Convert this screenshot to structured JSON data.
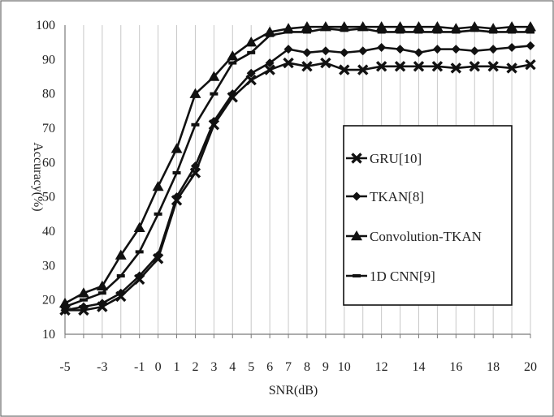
{
  "chart_data": {
    "type": "line",
    "title": "",
    "xlabel": "SNR(dB)",
    "ylabel": "Accuracy(%)",
    "ylim": [
      10,
      100
    ],
    "yticks": [
      10,
      20,
      30,
      40,
      50,
      60,
      70,
      80,
      90,
      100
    ],
    "xticks": [
      -5,
      -3,
      -1,
      0,
      1,
      2,
      3,
      4,
      5,
      6,
      7,
      8,
      9,
      10,
      12,
      14,
      16,
      18,
      20
    ],
    "x": [
      -5,
      -4,
      -3,
      -2,
      -1,
      0,
      1,
      2,
      3,
      4,
      5,
      6,
      7,
      8,
      9,
      10,
      11,
      12,
      13,
      14,
      15,
      16,
      17,
      18,
      19,
      20
    ],
    "grid": "vertical",
    "legend_position": "right",
    "series": [
      {
        "name": "GRU[10]",
        "marker": "cross",
        "values": [
          17,
          17,
          18,
          21,
          26,
          32,
          49,
          57,
          71,
          79,
          84,
          87,
          89,
          88,
          89,
          87,
          87,
          88,
          88,
          88,
          88,
          87.5,
          88,
          88,
          87.5,
          88.5
        ]
      },
      {
        "name": "TKAN[8]",
        "marker": "diamond",
        "values": [
          17,
          18,
          19,
          22,
          27,
          33,
          50,
          59,
          72,
          80,
          86,
          89,
          93,
          92,
          92.5,
          92,
          92.5,
          93.5,
          93,
          92,
          93,
          93,
          92.5,
          93,
          93.5,
          94
        ]
      },
      {
        "name": "Convolution-TKAN",
        "marker": "triangle",
        "values": [
          19,
          22,
          24,
          33,
          41,
          53,
          64,
          80,
          85,
          91,
          95,
          98,
          99,
          99.5,
          99.5,
          99.5,
          99.5,
          99.5,
          99.5,
          99.5,
          99.5,
          99,
          99.5,
          99,
          99.5,
          99.5
        ]
      },
      {
        "name": "1D CNN[9]",
        "marker": "dash",
        "values": [
          18,
          20,
          22,
          27,
          34,
          45,
          57,
          71,
          80,
          89,
          92,
          97,
          98,
          98,
          99,
          98.5,
          99,
          98,
          98,
          98,
          98,
          98,
          98.5,
          98,
          98,
          98
        ]
      }
    ]
  }
}
